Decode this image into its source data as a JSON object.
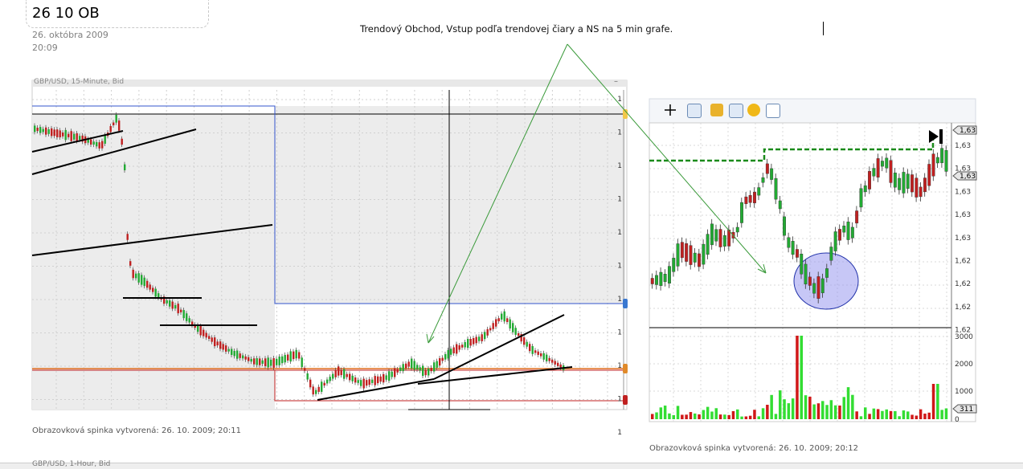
{
  "page": {
    "title": "26 10 OB",
    "date": "26. októbra 2009",
    "time": "20:09",
    "annotation": "Trendový Obchod, Vstup  podľa trendovej čiary a NS na 5 min grafe."
  },
  "left_chart": {
    "header": "GBP/USD, 15-Minute, Bid",
    "axis_labels": [
      "1",
      "1",
      "1",
      "1",
      "1",
      "1",
      "1",
      "1",
      "1",
      "1",
      "1"
    ],
    "caption": "Obrazovková spinka vytvorená: 26. 10. 2009; 20:11"
  },
  "right_chart": {
    "toolbar_icons": [
      "crosshair-icon",
      "zoom-icon",
      "indicator-icon",
      "chart-icon",
      "coin-icon",
      "table-icon"
    ],
    "price_labels": [
      "1,63",
      "1,63",
      "1,63",
      "1,63",
      "1,63",
      "1,62",
      "1,62",
      "1,62",
      "1,62"
    ],
    "price_label_current": "1,63",
    "volume_labels": [
      "3000",
      "2000",
      "1000",
      "0"
    ],
    "volume_current": "311",
    "caption": "Obrazovková spinka vytvorená: 26. 10. 2009; 20:12"
  },
  "footer": {
    "strip_text": "GBP/USD, 1-Hour, Bid"
  },
  "colors": {
    "bull": "#22aa33",
    "bear": "#c02020",
    "level_blue": "#3355cc",
    "level_orange": "#e07020",
    "dashed_green": "#1a8a1a",
    "arrow": "#3a9a3a",
    "circle_fill": "#9999ee"
  }
}
